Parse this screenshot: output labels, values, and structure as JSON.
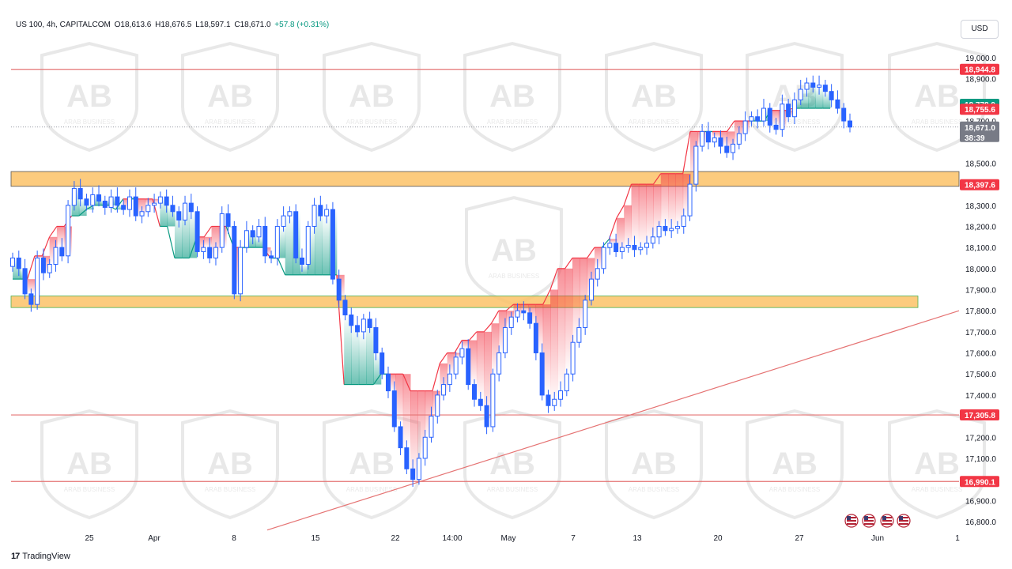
{
  "header": {
    "symbol": "US 100, 4h, CAPITALCOM",
    "open": "O18,613.6",
    "high": "H18,676.5",
    "low": "L18,597.1",
    "close": "C18,671.0",
    "change": "+57.8 (+0.31%)"
  },
  "currency": "USD",
  "countdown": "38:39",
  "watermark_text": "ARAB BUSINESS",
  "footer": {
    "brand": "TradingView"
  },
  "colors": {
    "up": "#089981",
    "down": "#f23645",
    "candle": "#2962ff",
    "zone_fill": "#fcc267",
    "resistance_line": "#e57373",
    "current_price": "#787b86"
  },
  "chart_data": {
    "type": "candlestick",
    "title": "US 100, 4h, CAPITALCOM",
    "ylim": [
      16800,
      19050
    ],
    "y_ticks": [
      "19,000.0",
      "18,900.0",
      "18,700.0",
      "18,500.0",
      "18,300.0",
      "18,200.0",
      "18,100.0",
      "18,000.0",
      "17,900.0",
      "17,800.0",
      "17,700.0",
      "17,600.0",
      "17,500.0",
      "17,400.0",
      "17,200.0",
      "17,100.0",
      "17,000.0",
      "16,900.0",
      "16,800.0"
    ],
    "x_ticks": [
      "25",
      "Apr",
      "8",
      "15",
      "22",
      "14:00",
      "May",
      "7",
      "13",
      "20",
      "27",
      "Jun",
      "1"
    ],
    "price_labels": [
      {
        "value": 18944.8,
        "text": "18,944.8",
        "color": "#f23645"
      },
      {
        "value": 18778.9,
        "text": "18,778.9",
        "color": "#089981"
      },
      {
        "value": 18755.6,
        "text": "18,755.6",
        "color": "#f23645"
      },
      {
        "value": 18671.0,
        "text": "18,671.0",
        "color": "#787b86"
      },
      {
        "value": 18397.6,
        "text": "18,397.6",
        "color": "#f23645"
      },
      {
        "value": 17305.8,
        "text": "17,305.8",
        "color": "#f23645"
      },
      {
        "value": 16990.1,
        "text": "16,990.1",
        "color": "#f23645"
      }
    ],
    "horizontal_lines": [
      18944.8,
      17305.8,
      16990.1
    ],
    "zones": [
      {
        "from": 18390,
        "to": 18460
      },
      {
        "from": 17815,
        "to": 17870
      }
    ],
    "trendline": {
      "from": [
        0,
        16760
      ],
      "to": [
        1,
        17800
      ]
    },
    "close_path": [
      18050,
      18000,
      17880,
      17830,
      18050,
      17980,
      18020,
      18100,
      18060,
      18300,
      18380,
      18330,
      18300,
      18350,
      18320,
      18290,
      18340,
      18300,
      18280,
      18340,
      18250,
      18270,
      18300,
      18310,
      18340,
      18300,
      18270,
      18230,
      18310,
      18270,
      18080,
      18100,
      18050,
      18100,
      18260,
      18200,
      17880,
      18100,
      18180,
      18150,
      18200,
      18060,
      18050,
      18200,
      18250,
      18270,
      18050,
      18020,
      18200,
      18300,
      18250,
      18280,
      17950,
      17850,
      17780,
      17730,
      17700,
      17760,
      17720,
      17600,
      17500,
      17420,
      17250,
      17150,
      17050,
      17000,
      17100,
      17200,
      17300,
      17400,
      17450,
      17500,
      17580,
      17620,
      17450,
      17380,
      17350,
      17250,
      17500,
      17600,
      17720,
      17770,
      17800,
      17790,
      17740,
      17600,
      17400,
      17350,
      17380,
      17420,
      17500,
      17650,
      17720,
      17850,
      17950,
      18000,
      18100,
      18120,
      18080,
      18100,
      18110,
      18090,
      18100,
      18120,
      18150,
      18200,
      18180,
      18190,
      18200,
      18250,
      18400,
      18580,
      18650,
      18600,
      18620,
      18580,
      18550,
      18590,
      18640,
      18700,
      18720,
      18700,
      18760,
      18680,
      18660,
      18780,
      18720,
      18800,
      18850,
      18880,
      18860,
      18870,
      18840,
      18800,
      18760,
      18700,
      18671
    ],
    "band_path": [
      17950,
      17950,
      17950,
      18060,
      18060,
      18150,
      18200,
      18200,
      18250,
      18250,
      18280,
      18300,
      18300,
      18300,
      18280,
      18330,
      18330,
      18330,
      18330,
      18330,
      18200,
      18200,
      18050,
      18050,
      18050,
      18150,
      18150,
      18200,
      18200,
      18200,
      18100,
      18100,
      18100,
      18100,
      18100,
      18050,
      18050,
      17970,
      17970,
      17970,
      17970,
      17970,
      17970,
      17970,
      17970,
      17450,
      17450,
      17450,
      17450,
      17450,
      17500,
      17500,
      17500,
      17500,
      17420,
      17420,
      17420,
      17420,
      17550,
      17600,
      17600,
      17660,
      17660,
      17700,
      17700,
      17740,
      17800,
      17800,
      17830,
      17830,
      17830,
      17830,
      17830,
      17900,
      18000,
      18000,
      18050,
      18050,
      18050,
      18100,
      18100,
      18140,
      18240,
      18300,
      18400,
      18400,
      18400,
      18400,
      18450,
      18450,
      18450,
      18450,
      18650,
      18650,
      18650,
      18650,
      18650,
      18650,
      18700,
      18700,
      18700,
      18700,
      18700,
      18750,
      18750,
      18750,
      18760,
      18760,
      18760,
      18760,
      18760,
      18760
    ]
  }
}
